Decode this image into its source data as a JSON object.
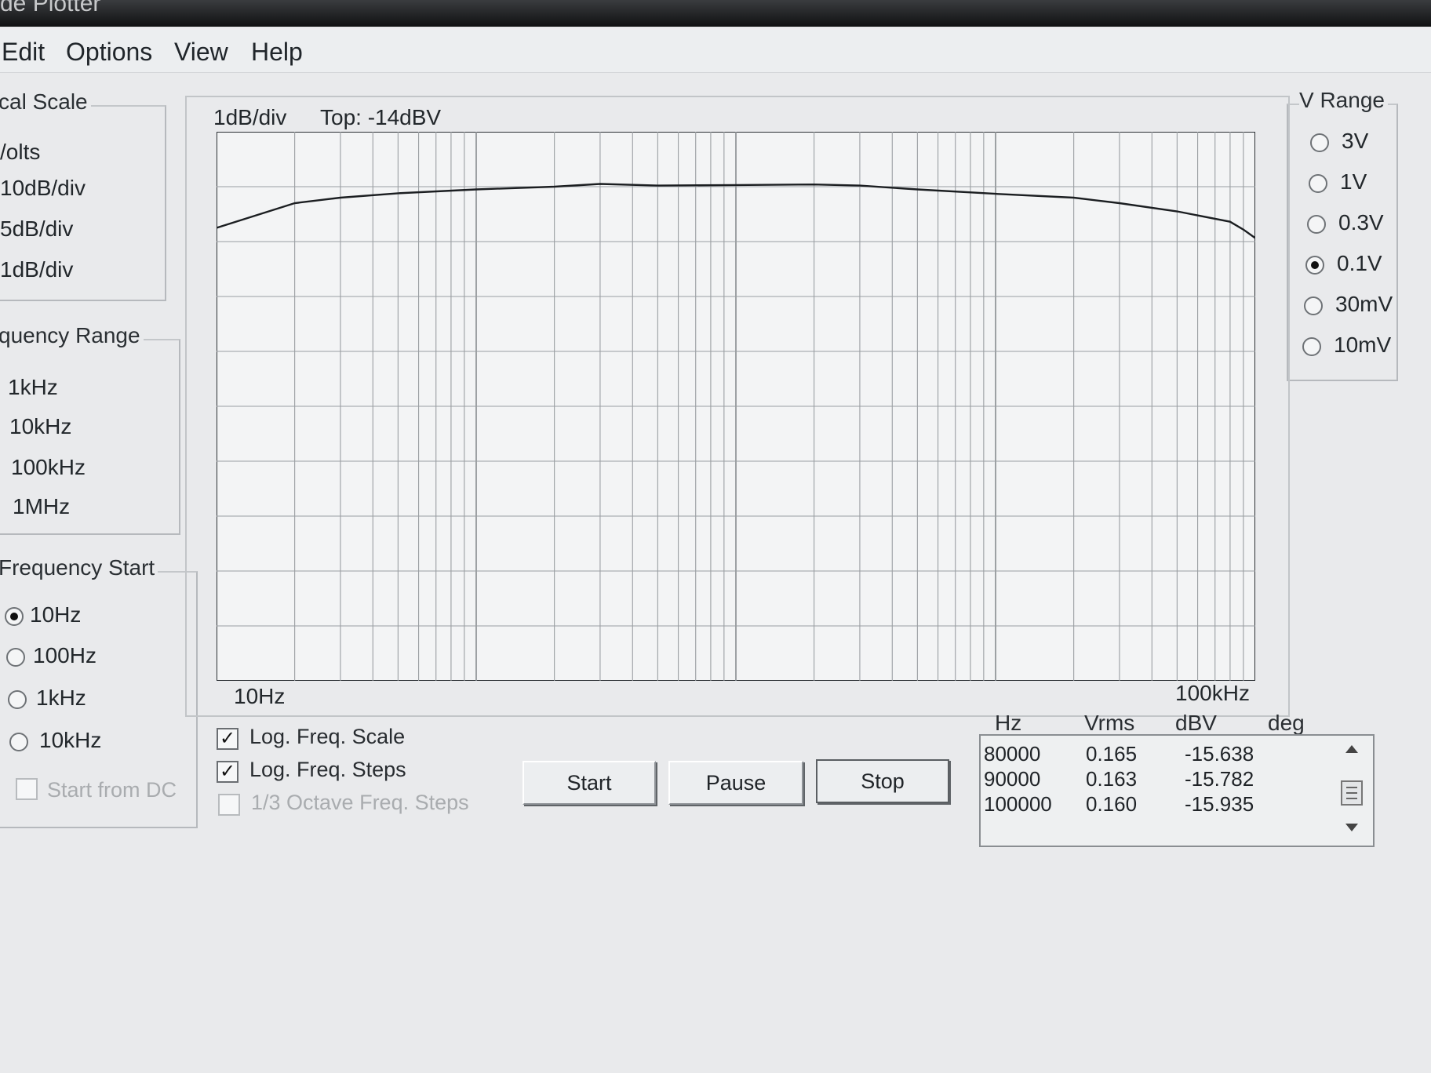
{
  "window": {
    "title": "de Plotter"
  },
  "menu": [
    "Edit",
    "Options",
    "View",
    "Help"
  ],
  "vertical_scale": {
    "title": "cal Scale",
    "options": [
      "/olts",
      "10dB/div",
      "5dB/div",
      "1dB/div"
    ]
  },
  "frequency_range": {
    "title": "quency Range",
    "options": [
      "1kHz",
      "10kHz",
      "100kHz",
      "1MHz"
    ]
  },
  "frequency_start": {
    "title": "Frequency Start",
    "options": [
      "10Hz",
      "100Hz",
      "1kHz",
      "10kHz"
    ],
    "selected": "10Hz",
    "start_from_dc": "Start from DC"
  },
  "v_range": {
    "title": "V Range",
    "options": [
      "3V",
      "1V",
      "0.3V",
      "0.1V",
      "30mV",
      "10mV"
    ],
    "selected": "0.1V"
  },
  "plot": {
    "scale_label": "1dB/div",
    "top_label": "Top: -14dBV",
    "x_start_label": "10Hz",
    "x_end_label": "100kHz"
  },
  "checkboxes": {
    "log_freq_scale": {
      "label": "Log. Freq. Scale",
      "checked": true
    },
    "log_freq_steps": {
      "label": "Log. Freq. Steps",
      "checked": true
    },
    "third_octave": {
      "label": "1/3 Octave Freq. Steps",
      "checked": false,
      "disabled": true
    }
  },
  "buttons": {
    "start": "Start",
    "pause": "Pause",
    "stop": "Stop"
  },
  "table": {
    "headers": [
      "Hz",
      "Vrms",
      "dBV",
      "deg"
    ],
    "rows": [
      [
        "80000",
        "0.165",
        "-15.638"
      ],
      [
        "90000",
        "0.163",
        "-15.782"
      ],
      [
        "100000",
        "0.160",
        "-15.935"
      ]
    ]
  },
  "chart_data": {
    "type": "line",
    "x_scale": "log",
    "xlim": [
      10,
      100000
    ],
    "ylim": [
      -24,
      -14
    ],
    "grid": true,
    "series": [
      {
        "x": [
          10,
          20,
          30,
          50,
          100,
          200,
          300,
          500,
          1000,
          2000,
          3000,
          5000,
          10000,
          20000,
          30000,
          50000,
          80000,
          90000,
          100000
        ],
        "y": [
          -15.75,
          -15.3,
          -15.2,
          -15.12,
          -15.05,
          -15.0,
          -14.95,
          -14.98,
          -14.97,
          -14.96,
          -14.98,
          -15.05,
          -15.13,
          -15.2,
          -15.3,
          -15.45,
          -15.638,
          -15.782,
          -15.935
        ]
      }
    ]
  }
}
